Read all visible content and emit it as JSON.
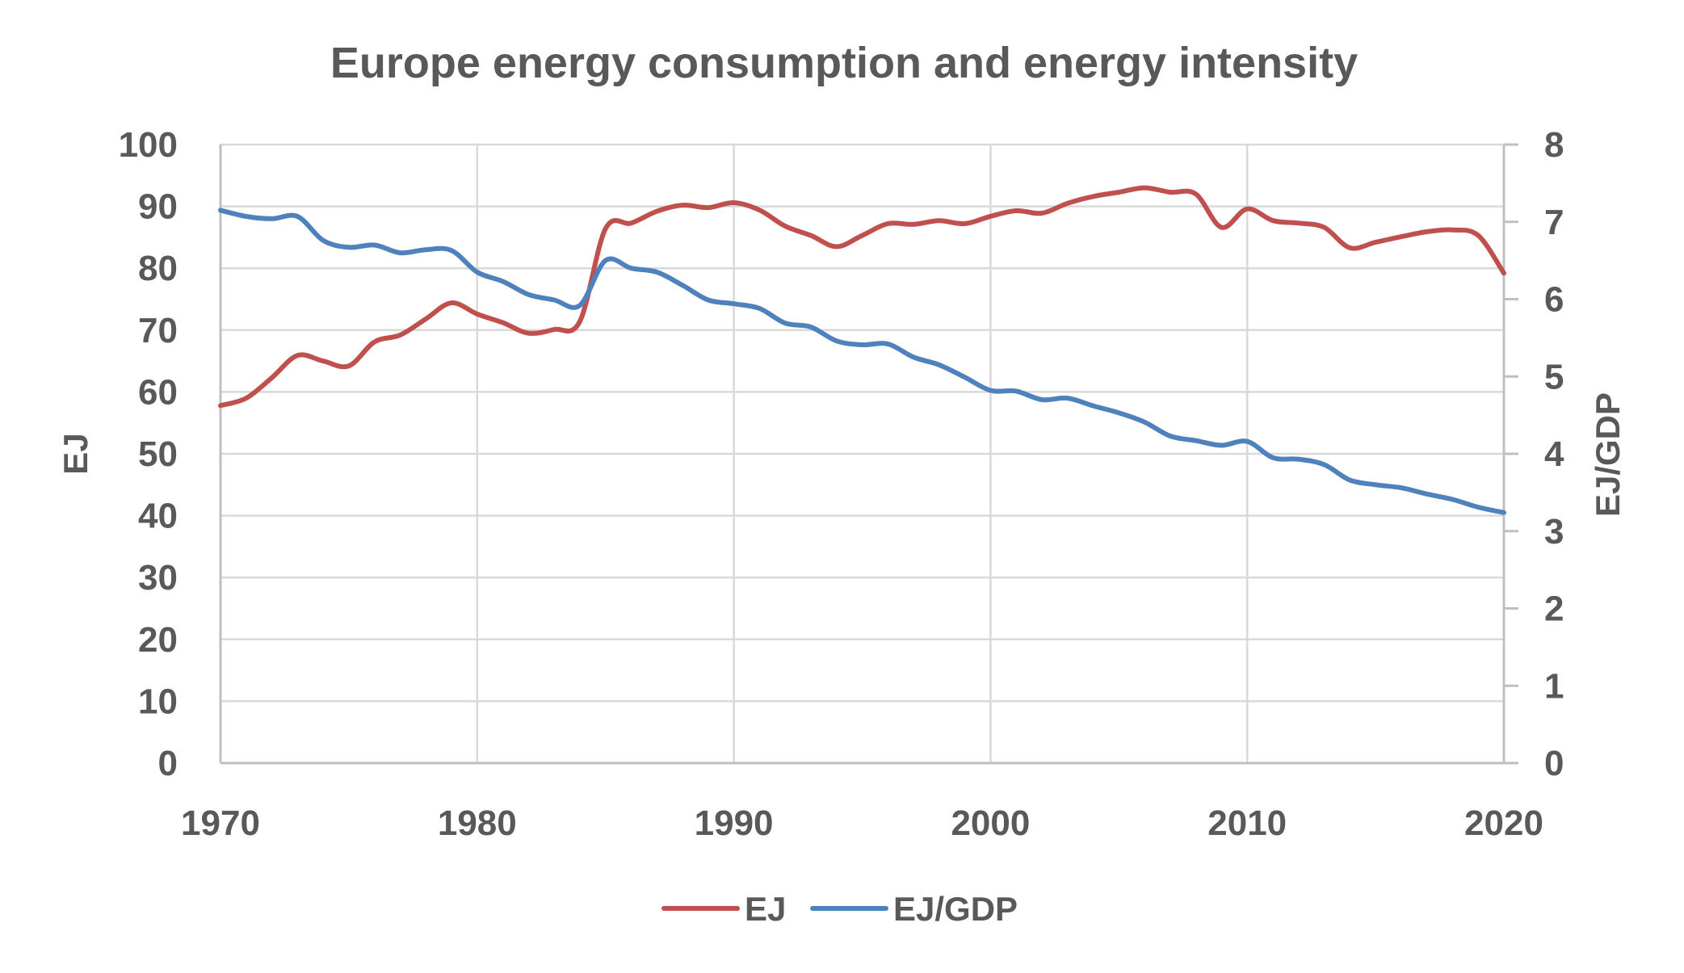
{
  "chart_data": {
    "type": "line",
    "title": "Europe energy consumption and energy intensity",
    "xlabel": "",
    "ylabel": "EJ",
    "y2label": "EJ/GDP",
    "xlim": [
      1970,
      2020
    ],
    "ylim": [
      0,
      100
    ],
    "y2lim": [
      0,
      8
    ],
    "x_ticks": [
      "1970",
      "1980",
      "1990",
      "2000",
      "2010",
      "2020"
    ],
    "y_ticks": [
      "0",
      "10",
      "20",
      "30",
      "40",
      "50",
      "60",
      "70",
      "80",
      "90",
      "100"
    ],
    "y2_ticks": [
      "0",
      "1",
      "2",
      "3",
      "4",
      "5",
      "6",
      "7",
      "8"
    ],
    "grid": true,
    "legend_position": "bottom-center",
    "x": [
      1970,
      1971,
      1972,
      1973,
      1974,
      1975,
      1976,
      1977,
      1978,
      1979,
      1980,
      1981,
      1982,
      1983,
      1984,
      1985,
      1986,
      1987,
      1988,
      1989,
      1990,
      1991,
      1992,
      1993,
      1994,
      1995,
      1996,
      1997,
      1998,
      1999,
      2000,
      2001,
      2002,
      2003,
      2004,
      2005,
      2006,
      2007,
      2008,
      2009,
      2010,
      2011,
      2012,
      2013,
      2014,
      2015,
      2016,
      2017,
      2018,
      2019,
      2020
    ],
    "series": [
      {
        "name": "EJ",
        "axis": "left",
        "color": "#C0504D",
        "values": [
          57.8,
          59.0,
          62.3,
          65.9,
          65.0,
          64.2,
          68.1,
          69.2,
          71.8,
          74.4,
          72.6,
          71.2,
          69.5,
          70.1,
          71.4,
          86.4,
          87.3,
          89.2,
          90.2,
          89.8,
          90.6,
          89.4,
          86.8,
          85.3,
          83.5,
          85.3,
          87.2,
          87.1,
          87.7,
          87.2,
          88.4,
          89.3,
          88.9,
          90.5,
          91.6,
          92.3,
          93.0,
          92.3,
          92.0,
          86.6,
          89.6,
          87.7,
          87.3,
          86.6,
          83.3,
          84.2,
          85.1,
          85.9,
          86.2,
          85.3,
          79.2
        ]
      },
      {
        "name": "EJ/GDP",
        "axis": "right",
        "color": "#4F81BD",
        "values": [
          7.15,
          7.07,
          7.04,
          7.07,
          6.76,
          6.67,
          6.7,
          6.6,
          6.64,
          6.63,
          6.35,
          6.23,
          6.06,
          5.99,
          5.92,
          6.5,
          6.4,
          6.35,
          6.18,
          5.99,
          5.94,
          5.88,
          5.69,
          5.64,
          5.46,
          5.41,
          5.42,
          5.25,
          5.15,
          4.99,
          4.82,
          4.81,
          4.7,
          4.72,
          4.62,
          4.53,
          4.41,
          4.23,
          4.17,
          4.11,
          4.16,
          3.95,
          3.93,
          3.86,
          3.66,
          3.6,
          3.56,
          3.48,
          3.41,
          3.31,
          3.24
        ]
      }
    ]
  }
}
